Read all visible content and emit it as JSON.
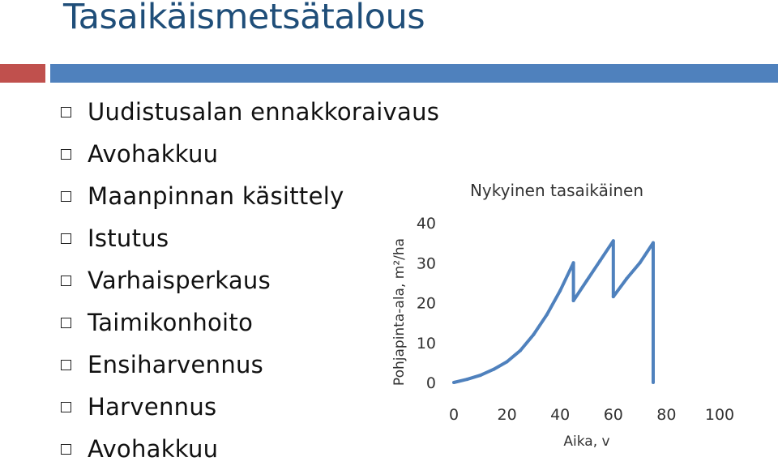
{
  "slide": {
    "title": "Tasaikäismetsätalous",
    "accent_colors": {
      "red": "#c0504d",
      "blue": "#4f81bd",
      "title": "#1f4e79"
    },
    "bullet_icon": "hollow-square-icon",
    "bullets": [
      "Uudistusalan ennakkoraivaus",
      "Avohakkuu",
      "Maanpinnan käsittely",
      "Istutus",
      "Varhaisperkaus",
      "Taimikonhoito",
      "Ensiharvennus",
      "Harvennus",
      "Avohakkuu"
    ]
  },
  "chart_data": {
    "type": "line",
    "title": "Nykyinen tasaikäinen",
    "xlabel": "Aika, v",
    "ylabel": "Pohjapinta-ala, m²/ha",
    "xlim": [
      0,
      100
    ],
    "ylim": [
      0,
      40
    ],
    "xticks": [
      "0",
      "20",
      "40",
      "60",
      "80",
      "100"
    ],
    "yticks": [
      "0",
      "10",
      "20",
      "30",
      "40"
    ],
    "grid": false,
    "line_color": "#4f81bd",
    "series": [
      {
        "x": [
          0,
          5,
          10,
          15,
          20,
          25,
          30,
          35,
          40,
          45,
          45,
          50,
          55,
          60,
          60,
          65,
          70,
          75,
          75
        ],
        "y": [
          0,
          0.8,
          1.8,
          3.3,
          5.2,
          8,
          12,
          17,
          23,
          30,
          20.5,
          25.5,
          30.5,
          35.5,
          21.5,
          26,
          30,
          35,
          0
        ]
      }
    ]
  }
}
